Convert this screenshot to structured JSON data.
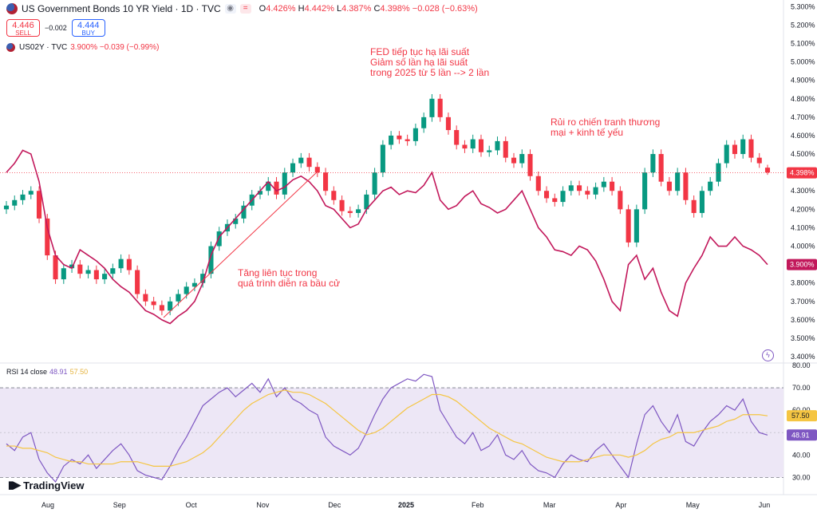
{
  "header": {
    "title": "US Government Bonds 10 YR Yield · 1D · TVC",
    "ohlc": {
      "o_label": "O",
      "o": "4.426%",
      "h_label": "H",
      "h": "4.442%",
      "l_label": "L",
      "l": "4.387%",
      "c_label": "C",
      "c": "4.398%",
      "chg": "−0.028 (−0.63%)"
    }
  },
  "trade": {
    "sell_price": "4.446",
    "sell_label": "SELL",
    "spread": "−0.002",
    "buy_price": "4.444",
    "buy_label": "BUY"
  },
  "overlay": {
    "symbol": "US02Y · TVC",
    "value": "3.900% −0.039 (−0.99%)"
  },
  "rsi": {
    "label": "RSI 14 close",
    "rsi_value": "48.91",
    "ma_value": "57.50"
  },
  "annotations": {
    "fed": "FED tiếp tục hạ lãi suất\nGiảm số lần hạ lãi suất\ntrong 2025 từ 5 lần --> 2 lần",
    "war": "Rủi ro chiến tranh thương\nmại + kinh tế yếu",
    "election": "Tăng liên tục trong\nquá trình diễn ra bầu cử"
  },
  "brand": {
    "logo_text": "TradingView"
  },
  "colors": {
    "up": "#089981",
    "down": "#f23645",
    "us02y": "#c2185b",
    "rsi": "#7e57c2",
    "rsi_ma": "#f5c542",
    "rsi_band": "#ede7f6"
  },
  "chart_data": {
    "type": "candlestick",
    "x_labels": [
      "Aug",
      "Sep",
      "Oct",
      "Nov",
      "Dec",
      "2025",
      "Feb",
      "Mar",
      "Apr",
      "May",
      "Jun"
    ],
    "y_ticks": [
      "5.300%",
      "5.200%",
      "5.100%",
      "5.000%",
      "4.900%",
      "4.800%",
      "4.700%",
      "4.600%",
      "4.500%",
      "4.400%",
      "4.300%",
      "4.200%",
      "4.100%",
      "4.000%",
      "3.900%",
      "3.800%",
      "3.700%",
      "3.600%",
      "3.500%",
      "3.400%"
    ],
    "y_range": [
      3.37,
      5.31
    ],
    "last_price_label": "4.398%",
    "us02y_last_label": "3.900%",
    "series": [
      {
        "name": "US Government Bonds 10 YR Yield",
        "style": "candles",
        "close": [
          4.22,
          4.25,
          4.28,
          4.3,
          4.15,
          3.95,
          3.82,
          3.88,
          3.9,
          3.85,
          3.87,
          3.82,
          3.85,
          3.88,
          3.93,
          3.87,
          3.74,
          3.7,
          3.68,
          3.65,
          3.7,
          3.74,
          3.78,
          3.8,
          3.85,
          4.0,
          4.08,
          4.12,
          4.15,
          4.22,
          4.28,
          4.3,
          4.35,
          4.28,
          4.4,
          4.45,
          4.48,
          4.43,
          4.4,
          4.3,
          4.25,
          4.19,
          4.18,
          4.2,
          4.28,
          4.4,
          4.55,
          4.6,
          4.58,
          4.57,
          4.64,
          4.7,
          4.8,
          4.7,
          4.63,
          4.55,
          4.53,
          4.58,
          4.51,
          4.52,
          4.57,
          4.48,
          4.45,
          4.5,
          4.38,
          4.3,
          4.26,
          4.24,
          4.3,
          4.33,
          4.3,
          4.28,
          4.32,
          4.35,
          4.3,
          4.2,
          4.02,
          4.2,
          4.4,
          4.5,
          4.35,
          4.3,
          4.4,
          4.25,
          4.18,
          4.3,
          4.35,
          4.45,
          4.55,
          4.5,
          4.58,
          4.48,
          4.45,
          4.4
        ],
        "ohlc_last": {
          "o": 4.426,
          "h": 4.442,
          "l": 4.387,
          "c": 4.398
        }
      },
      {
        "name": "US02Y",
        "style": "line",
        "values": [
          4.4,
          4.45,
          4.52,
          4.5,
          4.35,
          4.1,
          3.95,
          3.9,
          3.88,
          3.98,
          3.95,
          3.92,
          3.88,
          3.82,
          3.78,
          3.75,
          3.7,
          3.65,
          3.63,
          3.6,
          3.58,
          3.62,
          3.65,
          3.7,
          3.8,
          3.95,
          4.05,
          4.1,
          4.15,
          4.2,
          4.25,
          4.3,
          4.35,
          4.3,
          4.32,
          4.36,
          4.38,
          4.35,
          4.3,
          4.22,
          4.2,
          4.15,
          4.1,
          4.12,
          4.2,
          4.25,
          4.3,
          4.32,
          4.28,
          4.3,
          4.29,
          4.33,
          4.4,
          4.25,
          4.2,
          4.22,
          4.27,
          4.3,
          4.23,
          4.21,
          4.18,
          4.2,
          4.25,
          4.3,
          4.2,
          4.1,
          4.05,
          3.98,
          3.97,
          3.95,
          4.0,
          3.98,
          3.92,
          3.82,
          3.7,
          3.65,
          3.9,
          3.95,
          3.82,
          3.88,
          3.75,
          3.65,
          3.62,
          3.8,
          3.88,
          3.95,
          4.05,
          4.0,
          4.0,
          4.05,
          4.0,
          3.98,
          3.95,
          3.9
        ]
      }
    ],
    "rsi": {
      "y_ticks": [
        "80.00",
        "70.00",
        "60.00",
        "50.00",
        "40.00",
        "30.00"
      ],
      "y_range": [
        28,
        80
      ],
      "band": [
        30,
        70
      ],
      "rsi_series": [
        45,
        42,
        48,
        50,
        38,
        32,
        28,
        35,
        38,
        36,
        40,
        34,
        38,
        42,
        45,
        40,
        33,
        31,
        30,
        29,
        35,
        42,
        48,
        55,
        62,
        65,
        68,
        70,
        66,
        69,
        72,
        68,
        74,
        66,
        70,
        65,
        63,
        60,
        58,
        48,
        44,
        42,
        40,
        43,
        50,
        58,
        65,
        70,
        72,
        74,
        73,
        76,
        75,
        60,
        54,
        48,
        45,
        50,
        42,
        44,
        49,
        40,
        38,
        42,
        36,
        33,
        32,
        30,
        36,
        40,
        38,
        37,
        42,
        45,
        40,
        35,
        30,
        45,
        58,
        62,
        55,
        50,
        58,
        46,
        44,
        50,
        55,
        58,
        62,
        60,
        65,
        55,
        50,
        48.91
      ],
      "ma_series": [
        44,
        44,
        43,
        43,
        42,
        41,
        39,
        38,
        37,
        37,
        36,
        36,
        36,
        36,
        37,
        37,
        37,
        36,
        35,
        35,
        35,
        36,
        37,
        39,
        41,
        44,
        48,
        52,
        56,
        60,
        63,
        65,
        67,
        68,
        69,
        68,
        68,
        67,
        65,
        63,
        60,
        57,
        54,
        51,
        49,
        50,
        52,
        55,
        58,
        61,
        63,
        65,
        67,
        67,
        66,
        64,
        61,
        58,
        55,
        52,
        50,
        48,
        46,
        45,
        43,
        41,
        39,
        38,
        37,
        37,
        37,
        38,
        39,
        40,
        40,
        40,
        39,
        40,
        42,
        45,
        47,
        48,
        50,
        50,
        50,
        51,
        52,
        53,
        55,
        56,
        58,
        58,
        58,
        57.5
      ]
    }
  }
}
